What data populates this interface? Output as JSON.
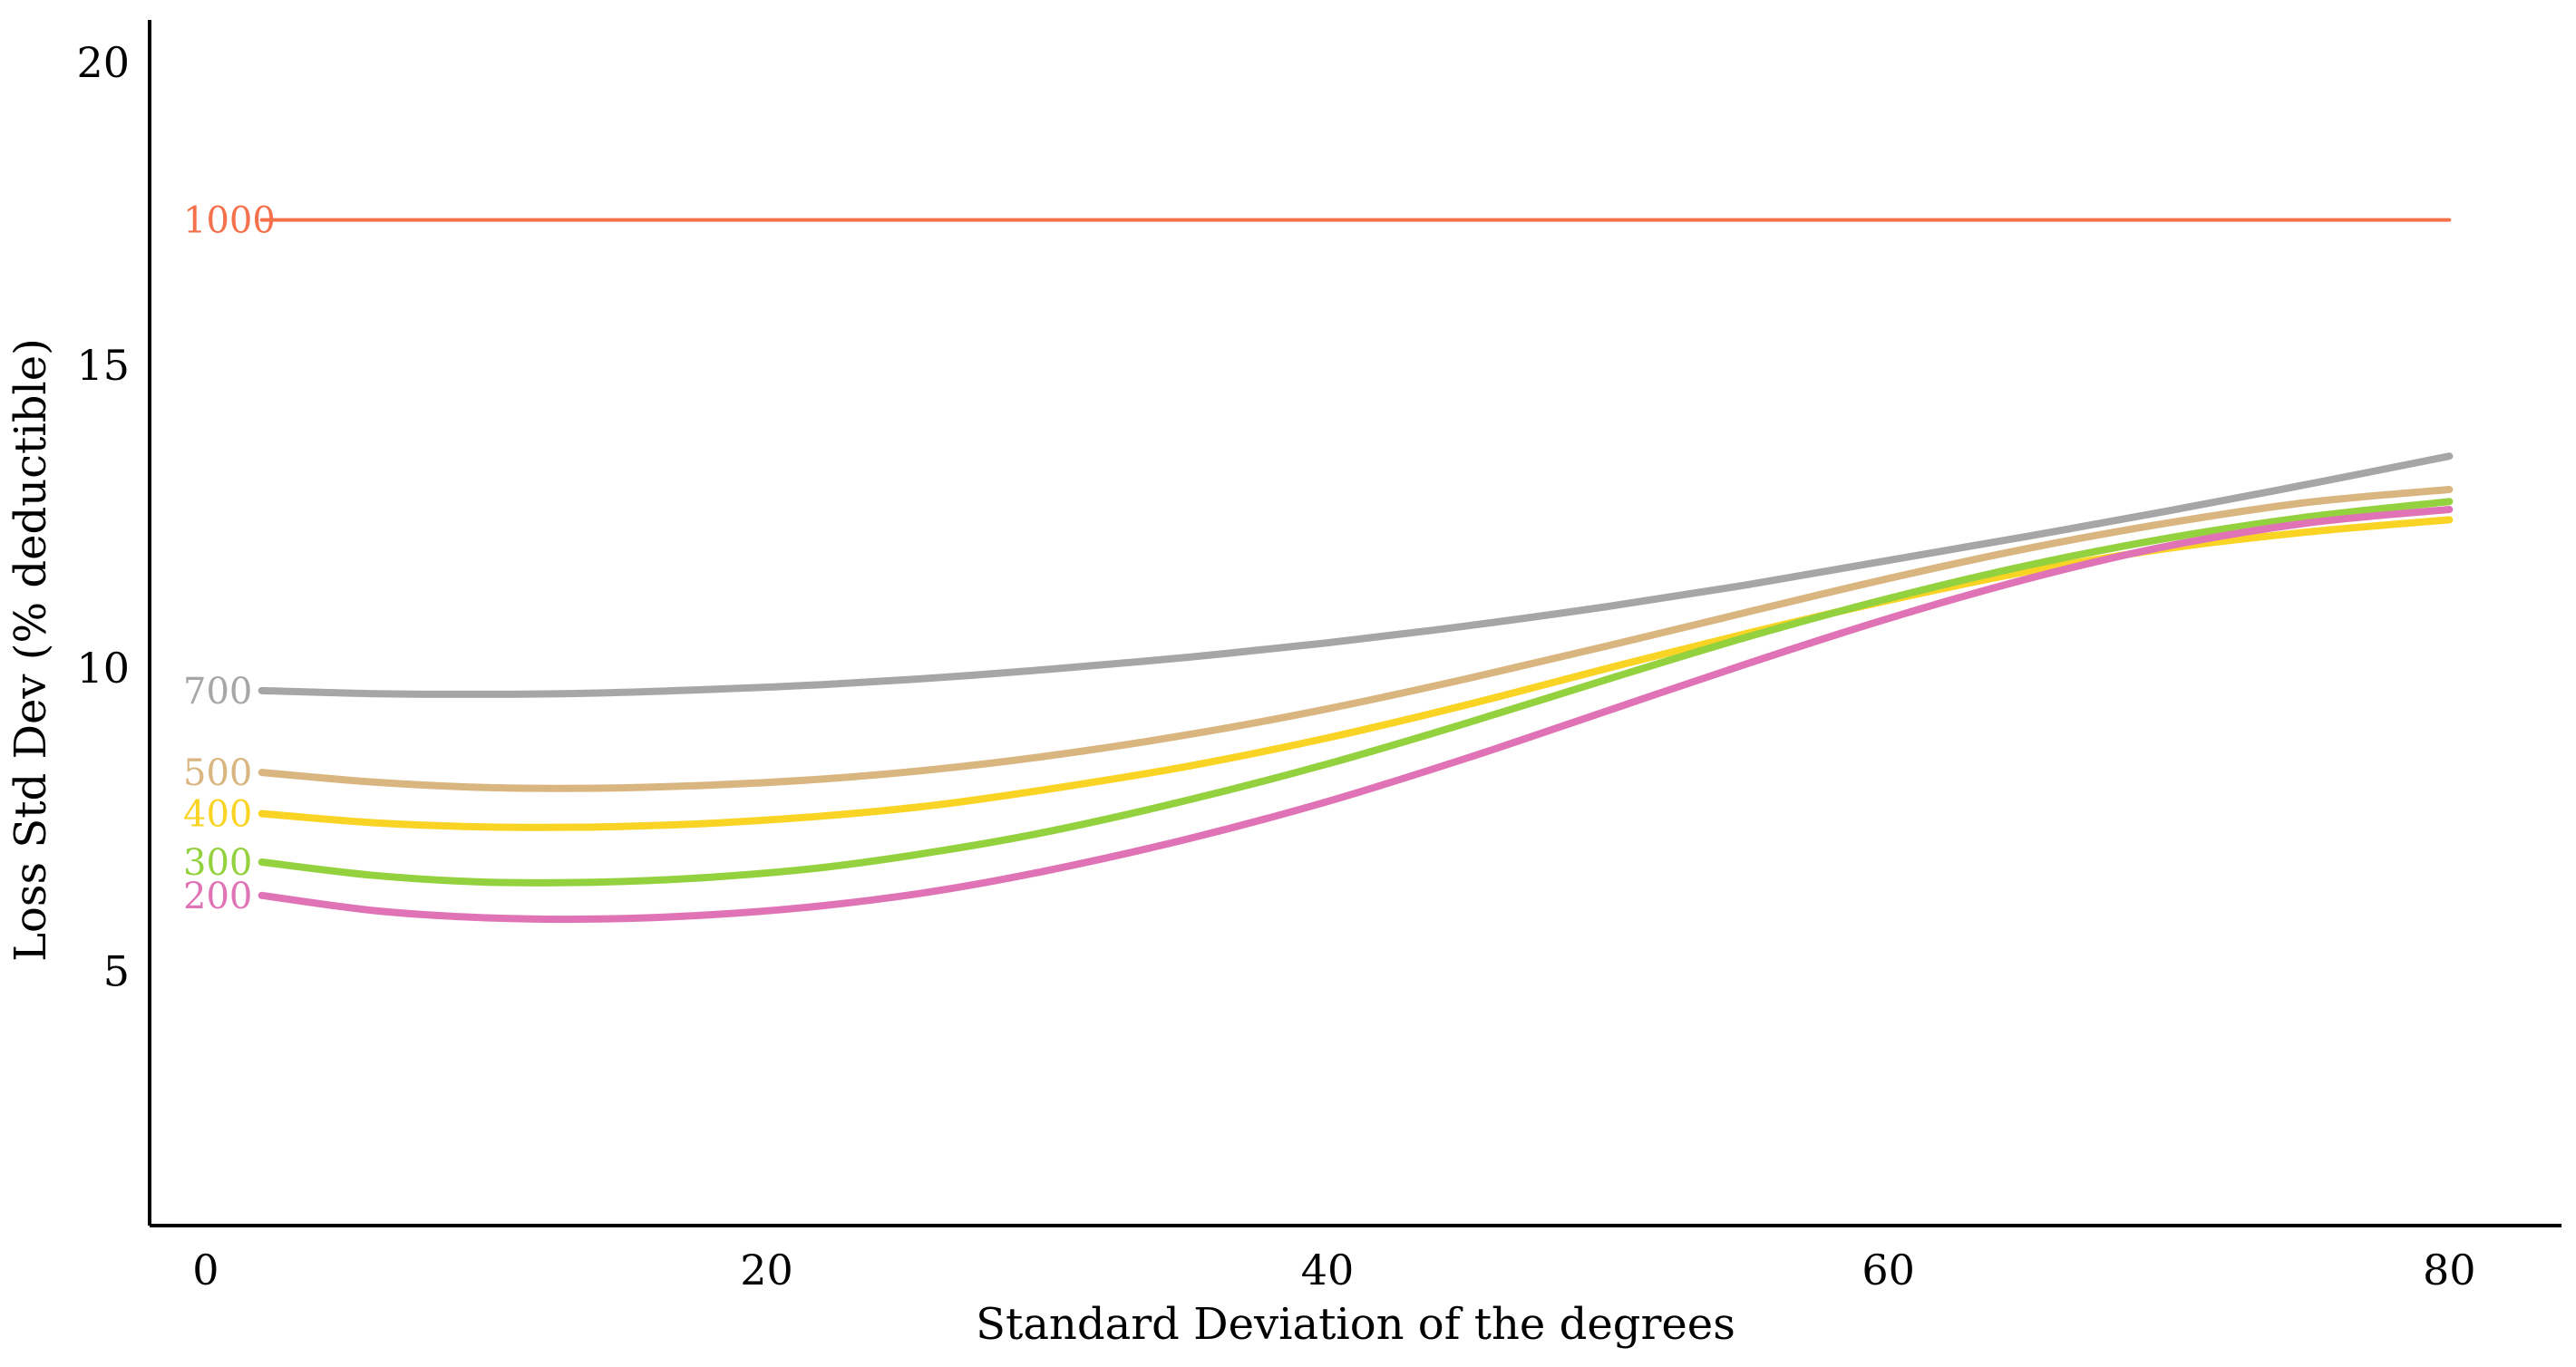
{
  "chart_data": {
    "type": "line",
    "title": "",
    "xlabel": "Standard Deviation of the degrees",
    "ylabel": "Loss Std Dev (% deductible)",
    "xlim": [
      -2,
      84
    ],
    "ylim": [
      0.8,
      20.7
    ],
    "xticks": [
      0,
      20,
      40,
      60,
      80
    ],
    "yticks": [
      5,
      10,
      15,
      20
    ],
    "grid": false,
    "legend": "inline-labels-left",
    "series": [
      {
        "name": "1000",
        "color": "#F4714C",
        "x": [
          2,
          80
        ],
        "y": [
          17.4,
          17.4
        ]
      },
      {
        "name": "700",
        "color": "#A6A6A6",
        "x": [
          2,
          6,
          10,
          14,
          18,
          22,
          26,
          30,
          35,
          40,
          45,
          50,
          55,
          60,
          65,
          70,
          75,
          80
        ],
        "y": [
          9.63,
          9.58,
          9.57,
          9.59,
          9.65,
          9.73,
          9.84,
          9.98,
          10.18,
          10.42,
          10.7,
          11.02,
          11.38,
          11.78,
          12.18,
          12.6,
          13.04,
          13.5
        ]
      },
      {
        "name": "500",
        "color": "#D9B580",
        "x": [
          2,
          6,
          10,
          14,
          18,
          22,
          26,
          30,
          35,
          40,
          45,
          50,
          55,
          60,
          65,
          70,
          75,
          80
        ],
        "y": [
          8.28,
          8.12,
          8.03,
          8.02,
          8.07,
          8.17,
          8.33,
          8.55,
          8.9,
          9.33,
          9.83,
          10.37,
          10.93,
          11.48,
          11.98,
          12.4,
          12.74,
          12.95
        ]
      },
      {
        "name": "400",
        "color": "#F9D424",
        "x": [
          2,
          6,
          10,
          14,
          18,
          22,
          26,
          30,
          35,
          40,
          45,
          50,
          55,
          60,
          65,
          70,
          75,
          80
        ],
        "y": [
          7.6,
          7.45,
          7.38,
          7.38,
          7.44,
          7.56,
          7.74,
          8.0,
          8.38,
          8.85,
          9.4,
          10.0,
          10.58,
          11.12,
          11.6,
          11.98,
          12.25,
          12.45
        ]
      },
      {
        "name": "300",
        "color": "#94D13E",
        "x": [
          2,
          6,
          10,
          14,
          18,
          22,
          26,
          30,
          35,
          40,
          45,
          50,
          55,
          60,
          65,
          70,
          75,
          80
        ],
        "y": [
          6.8,
          6.58,
          6.47,
          6.47,
          6.55,
          6.71,
          6.97,
          7.3,
          7.82,
          8.42,
          9.1,
          9.82,
          10.52,
          11.15,
          11.7,
          12.15,
          12.5,
          12.75
        ]
      },
      {
        "name": "200",
        "color": "#E073B5",
        "x": [
          2,
          6,
          10,
          14,
          18,
          22,
          26,
          30,
          35,
          40,
          45,
          50,
          55,
          60,
          65,
          70,
          75,
          80
        ],
        "y": [
          6.25,
          6.0,
          5.88,
          5.86,
          5.93,
          6.08,
          6.32,
          6.66,
          7.18,
          7.8,
          8.52,
          9.3,
          10.08,
          10.82,
          11.48,
          12.02,
          12.4,
          12.62
        ]
      }
    ]
  }
}
